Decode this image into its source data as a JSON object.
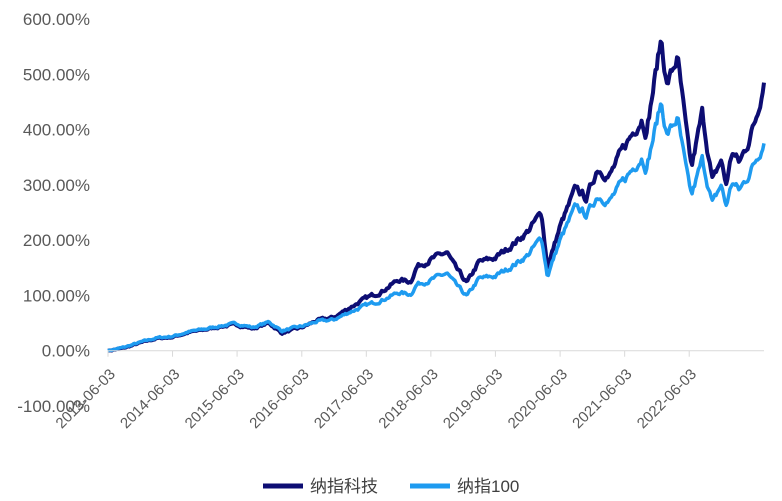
{
  "chart_data": {
    "type": "line",
    "title": "",
    "xlabel": "",
    "ylabel": "",
    "ylim": [
      -100,
      600
    ],
    "y_ticks": [
      -100,
      0,
      100,
      200,
      300,
      400,
      500,
      600
    ],
    "y_tick_labels": [
      "-100.00%",
      "0.00%",
      "100.00%",
      "200.00%",
      "300.00%",
      "400.00%",
      "500.00%",
      "600.00%"
    ],
    "x_range": [
      "2013-06-03",
      "2023-07-31"
    ],
    "x_ticks": [
      "2013-06-03",
      "2014-06-03",
      "2015-06-03",
      "2016-06-03",
      "2017-06-03",
      "2018-06-03",
      "2019-06-03",
      "2020-06-03",
      "2021-06-03",
      "2022-06-03"
    ],
    "legend_position": "bottom",
    "grid": false,
    "series": [
      {
        "name": "纳指科技",
        "color": "#0d0d73",
        "points": [
          [
            "2013-06-03",
            0
          ],
          [
            "2013-09-01",
            5
          ],
          [
            "2013-12-01",
            14
          ],
          [
            "2014-03-01",
            22
          ],
          [
            "2014-06-03",
            25
          ],
          [
            "2014-09-01",
            33
          ],
          [
            "2014-12-01",
            38
          ],
          [
            "2015-03-01",
            44
          ],
          [
            "2015-06-03",
            47
          ],
          [
            "2015-09-01",
            40
          ],
          [
            "2015-12-01",
            50
          ],
          [
            "2016-02-10",
            32
          ],
          [
            "2016-06-03",
            42
          ],
          [
            "2016-09-01",
            55
          ],
          [
            "2016-12-01",
            60
          ],
          [
            "2017-03-01",
            78
          ],
          [
            "2017-06-03",
            95
          ],
          [
            "2017-09-01",
            108
          ],
          [
            "2017-12-01",
            128
          ],
          [
            "2018-02-08",
            125
          ],
          [
            "2018-03-15",
            152
          ],
          [
            "2018-06-03",
            165
          ],
          [
            "2018-09-01",
            178
          ],
          [
            "2018-10-20",
            150
          ],
          [
            "2018-12-24",
            122
          ],
          [
            "2019-03-01",
            160
          ],
          [
            "2019-06-03",
            168
          ],
          [
            "2019-09-01",
            190
          ],
          [
            "2019-12-01",
            215
          ],
          [
            "2020-02-19",
            250
          ],
          [
            "2020-03-23",
            150
          ],
          [
            "2020-06-03",
            225
          ],
          [
            "2020-09-02",
            295
          ],
          [
            "2020-10-30",
            275
          ],
          [
            "2020-12-31",
            330
          ],
          [
            "2021-03-08",
            315
          ],
          [
            "2021-06-03",
            370
          ],
          [
            "2021-09-07",
            420
          ],
          [
            "2021-10-04",
            395
          ],
          [
            "2021-12-27",
            565
          ],
          [
            "2022-01-27",
            480
          ],
          [
            "2022-03-29",
            530
          ],
          [
            "2022-05-20",
            390
          ],
          [
            "2022-06-16",
            330
          ],
          [
            "2022-08-16",
            430
          ],
          [
            "2022-10-13",
            305
          ],
          [
            "2022-11-30",
            345
          ],
          [
            "2022-12-28",
            300
          ],
          [
            "2023-02-02",
            360
          ],
          [
            "2023-03-13",
            340
          ],
          [
            "2023-05-01",
            375
          ],
          [
            "2023-06-15",
            420
          ],
          [
            "2023-07-31",
            485
          ]
        ]
      },
      {
        "name": "纳指100",
        "color": "#1e9bf0",
        "points": [
          [
            "2013-06-03",
            0
          ],
          [
            "2013-09-01",
            6
          ],
          [
            "2013-12-01",
            15
          ],
          [
            "2014-03-01",
            23
          ],
          [
            "2014-06-03",
            26
          ],
          [
            "2014-09-01",
            34
          ],
          [
            "2014-12-01",
            39
          ],
          [
            "2015-03-01",
            45
          ],
          [
            "2015-06-03",
            49
          ],
          [
            "2015-09-01",
            42
          ],
          [
            "2015-12-01",
            52
          ],
          [
            "2016-02-10",
            36
          ],
          [
            "2016-06-03",
            44
          ],
          [
            "2016-09-01",
            53
          ],
          [
            "2016-12-01",
            56
          ],
          [
            "2017-03-01",
            70
          ],
          [
            "2017-06-03",
            82
          ],
          [
            "2017-09-01",
            92
          ],
          [
            "2017-12-01",
            105
          ],
          [
            "2018-02-08",
            102
          ],
          [
            "2018-03-15",
            120
          ],
          [
            "2018-06-03",
            128
          ],
          [
            "2018-09-01",
            140
          ],
          [
            "2018-10-20",
            120
          ],
          [
            "2018-12-24",
            98
          ],
          [
            "2019-03-01",
            130
          ],
          [
            "2019-06-03",
            135
          ],
          [
            "2019-09-01",
            152
          ],
          [
            "2019-12-01",
            172
          ],
          [
            "2020-02-19",
            205
          ],
          [
            "2020-03-23",
            135
          ],
          [
            "2020-06-03",
            200
          ],
          [
            "2020-09-02",
            262
          ],
          [
            "2020-10-30",
            245
          ],
          [
            "2020-12-31",
            280
          ],
          [
            "2021-03-08",
            270
          ],
          [
            "2021-06-03",
            310
          ],
          [
            "2021-09-07",
            350
          ],
          [
            "2021-10-04",
            330
          ],
          [
            "2021-12-27",
            450
          ],
          [
            "2022-01-27",
            390
          ],
          [
            "2022-03-29",
            420
          ],
          [
            "2022-05-20",
            320
          ],
          [
            "2022-06-16",
            280
          ],
          [
            "2022-08-16",
            345
          ],
          [
            "2022-10-13",
            265
          ],
          [
            "2022-11-30",
            300
          ],
          [
            "2022-12-28",
            262
          ],
          [
            "2023-02-02",
            305
          ],
          [
            "2023-03-13",
            290
          ],
          [
            "2023-05-01",
            315
          ],
          [
            "2023-06-15",
            345
          ],
          [
            "2023-07-31",
            375
          ]
        ]
      }
    ]
  }
}
